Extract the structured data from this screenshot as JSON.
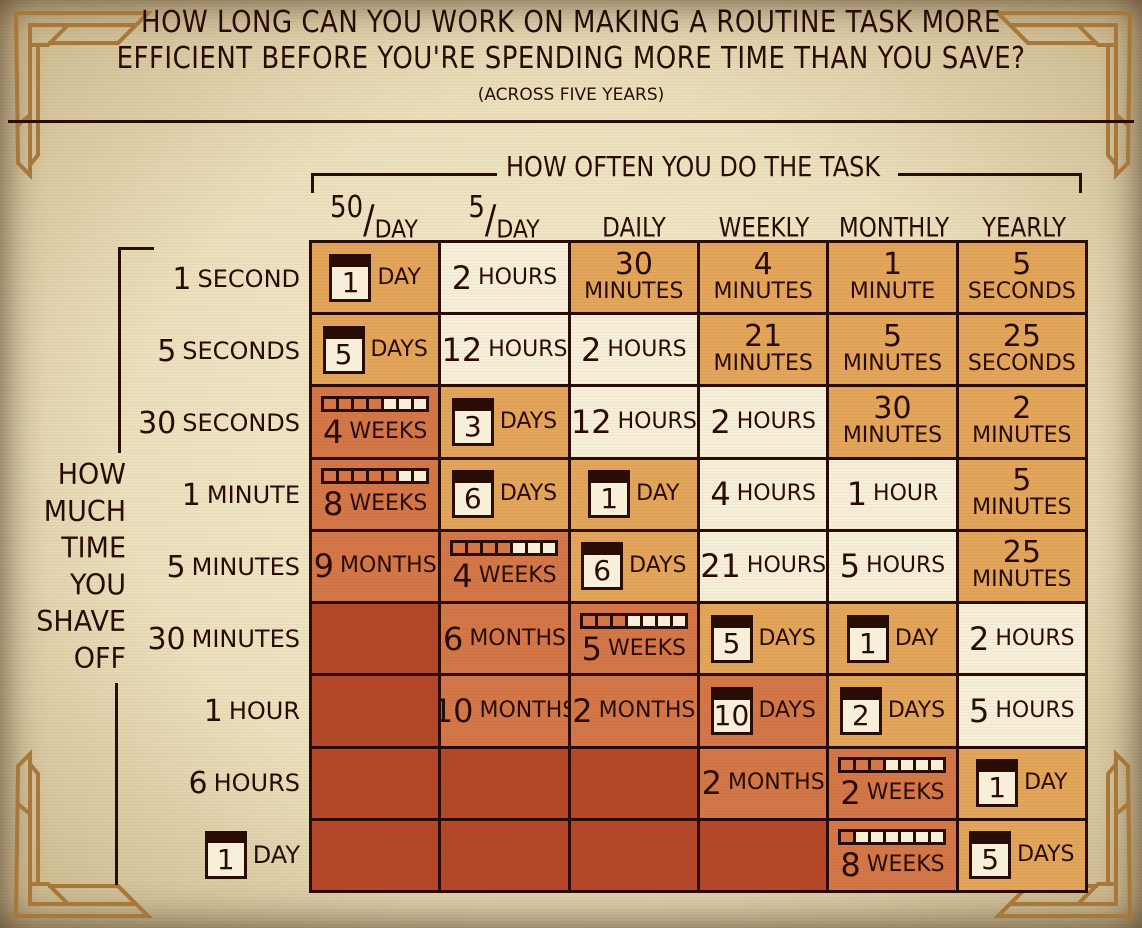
{
  "header": {
    "title_line_1": "HOW LONG CAN YOU WORK ON MAKING A ROUTINE TASK MORE",
    "title_line_2": "EFFICIENT BEFORE YOU'RE SPENDING MORE TIME THAN YOU SAVE?",
    "subtitle": "(ACROSS FIVE YEARS)"
  },
  "axes": {
    "column_group_label": "HOW OFTEN YOU DO THE TASK",
    "row_group_label": [
      "HOW",
      "MUCH",
      "TIME",
      "YOU",
      "SHAVE",
      "OFF"
    ],
    "columns": [
      {
        "num": "50",
        "slash": "/",
        "den": "DAY"
      },
      {
        "num": "5",
        "slash": "/",
        "den": "DAY"
      },
      {
        "label": "DAILY"
      },
      {
        "label": "WEEKLY"
      },
      {
        "label": "MONTHLY"
      },
      {
        "label": "YEARLY"
      }
    ],
    "rows": [
      {
        "num": "1",
        "unit": "SECOND"
      },
      {
        "num": "5",
        "unit": "SECONDS"
      },
      {
        "num": "30",
        "unit": "SECONDS"
      },
      {
        "num": "1",
        "unit": "MINUTE"
      },
      {
        "num": "5",
        "unit": "MINUTES"
      },
      {
        "num": "30",
        "unit": "MINUTES"
      },
      {
        "num": "1",
        "unit": "HOUR"
      },
      {
        "num": "6",
        "unit": "HOURS"
      },
      {
        "num": "1",
        "unit": "DAY",
        "calendar": true
      }
    ]
  },
  "colors": {
    "light": "#f7efd8",
    "gold": "#e3a55a",
    "orange": "#d47748",
    "dark": "#b6482a",
    "ink": "#2a0c06",
    "paper": "#f0e6c8",
    "frame_gold": "#a8773a"
  },
  "chart_data": {
    "type": "table",
    "title": "How long can you work on making a routine task more efficient before you're spending more time than you save? (across five years)",
    "xlabel": "How often you do the task",
    "ylabel": "How much time you shave off",
    "columns": [
      "50/day",
      "5/day",
      "Daily",
      "Weekly",
      "Monthly",
      "Yearly"
    ],
    "rows": [
      "1 second",
      "5 seconds",
      "30 seconds",
      "1 minute",
      "5 minutes",
      "30 minutes",
      "1 hour",
      "6 hours",
      "1 day"
    ],
    "values": [
      [
        "1 day",
        "2 hours",
        "30 minutes",
        "4 minutes",
        "1 minute",
        "5 seconds"
      ],
      [
        "5 days",
        "12 hours",
        "2 hours",
        "21 minutes",
        "5 minutes",
        "25 seconds"
      ],
      [
        "4 weeks",
        "3 days",
        "12 hours",
        "2 hours",
        "30 minutes",
        "2 minutes"
      ],
      [
        "8 weeks",
        "6 days",
        "1 day",
        "4 hours",
        "1 hour",
        "5 minutes"
      ],
      [
        "9 months",
        "4 weeks",
        "6 days",
        "21 hours",
        "5 hours",
        "25 minutes"
      ],
      [
        "",
        "6 months",
        "5 weeks",
        "5 days",
        "1 day",
        "2 hours"
      ],
      [
        "",
        "10 months",
        "2 months",
        "10 days",
        "2 days",
        "5 hours"
      ],
      [
        "",
        "",
        "",
        "2 months",
        "2 weeks",
        "1 day"
      ],
      [
        "",
        "",
        "",
        "",
        "8 weeks",
        "5 days"
      ]
    ]
  },
  "cells": [
    [
      {
        "type": "cal",
        "num": "1",
        "unit": "DAY",
        "color": "gold"
      },
      {
        "type": "inline",
        "num": "2",
        "unit": "HOURS",
        "color": "light"
      },
      {
        "type": "stack",
        "num": "30",
        "unit": "MINUTES",
        "color": "gold"
      },
      {
        "type": "stack",
        "num": "4",
        "unit": "MINUTES",
        "color": "gold"
      },
      {
        "type": "stack",
        "num": "1",
        "unit": "MINUTE",
        "color": "gold"
      },
      {
        "type": "stack",
        "num": "5",
        "unit": "SECONDS",
        "color": "gold"
      }
    ],
    [
      {
        "type": "cal",
        "num": "5",
        "unit": "DAYS",
        "color": "gold"
      },
      {
        "type": "inline",
        "num": "12",
        "unit": "HOURS",
        "color": "light"
      },
      {
        "type": "inline",
        "num": "2",
        "unit": "HOURS",
        "color": "light"
      },
      {
        "type": "stack",
        "num": "21",
        "unit": "MINUTES",
        "color": "gold"
      },
      {
        "type": "stack",
        "num": "5",
        "unit": "MINUTES",
        "color": "gold"
      },
      {
        "type": "stack",
        "num": "25",
        "unit": "SECONDS",
        "color": "gold"
      }
    ],
    [
      {
        "type": "weeks",
        "num": "4",
        "unit": "WEEKS",
        "filled": 4,
        "color": "orange"
      },
      {
        "type": "cal",
        "num": "3",
        "unit": "DAYS",
        "color": "gold"
      },
      {
        "type": "inline",
        "num": "12",
        "unit": "HOURS",
        "color": "light"
      },
      {
        "type": "inline",
        "num": "2",
        "unit": "HOURS",
        "color": "light"
      },
      {
        "type": "stack",
        "num": "30",
        "unit": "MINUTES",
        "color": "gold"
      },
      {
        "type": "stack",
        "num": "2",
        "unit": "MINUTES",
        "color": "gold"
      }
    ],
    [
      {
        "type": "weeks",
        "num": "8",
        "unit": "WEEKS",
        "filled": 5,
        "color": "orange"
      },
      {
        "type": "cal",
        "num": "6",
        "unit": "DAYS",
        "color": "gold"
      },
      {
        "type": "cal",
        "num": "1",
        "unit": "DAY",
        "color": "gold"
      },
      {
        "type": "inline",
        "num": "4",
        "unit": "HOURS",
        "color": "light"
      },
      {
        "type": "inline",
        "num": "1",
        "unit": "HOUR",
        "color": "light"
      },
      {
        "type": "stack",
        "num": "5",
        "unit": "MINUTES",
        "color": "gold"
      }
    ],
    [
      {
        "type": "inline",
        "num": "9",
        "unit": "MONTHS",
        "color": "orange"
      },
      {
        "type": "weeks",
        "num": "4",
        "unit": "WEEKS",
        "filled": 4,
        "color": "orange"
      },
      {
        "type": "cal",
        "num": "6",
        "unit": "DAYS",
        "color": "gold"
      },
      {
        "type": "inline",
        "num": "21",
        "unit": "HOURS",
        "color": "light"
      },
      {
        "type": "inline",
        "num": "5",
        "unit": "HOURS",
        "color": "light"
      },
      {
        "type": "stack",
        "num": "25",
        "unit": "MINUTES",
        "color": "gold"
      }
    ],
    [
      {
        "type": "empty",
        "color": "dark"
      },
      {
        "type": "inline",
        "num": "6",
        "unit": "MONTHS",
        "color": "orange"
      },
      {
        "type": "weeks",
        "num": "5",
        "unit": "WEEKS",
        "filled": 3,
        "color": "orange"
      },
      {
        "type": "cal",
        "num": "5",
        "unit": "DAYS",
        "color": "gold"
      },
      {
        "type": "cal",
        "num": "1",
        "unit": "DAY",
        "color": "gold"
      },
      {
        "type": "inline",
        "num": "2",
        "unit": "HOURS",
        "color": "light"
      }
    ],
    [
      {
        "type": "empty",
        "color": "dark"
      },
      {
        "type": "inline",
        "num": "10",
        "unit": "MONTHS",
        "color": "orange"
      },
      {
        "type": "inline",
        "num": "2",
        "unit": "MONTHS",
        "color": "orange"
      },
      {
        "type": "cal",
        "num": "10",
        "unit": "DAYS",
        "color": "orange"
      },
      {
        "type": "cal",
        "num": "2",
        "unit": "DAYS",
        "color": "gold"
      },
      {
        "type": "inline",
        "num": "5",
        "unit": "HOURS",
        "color": "light"
      }
    ],
    [
      {
        "type": "empty",
        "color": "dark"
      },
      {
        "type": "empty",
        "color": "dark"
      },
      {
        "type": "empty",
        "color": "dark"
      },
      {
        "type": "inline",
        "num": "2",
        "unit": "MONTHS",
        "color": "orange"
      },
      {
        "type": "weeks",
        "num": "2",
        "unit": "WEEKS",
        "filled": 3,
        "color": "orange"
      },
      {
        "type": "cal",
        "num": "1",
        "unit": "DAY",
        "color": "gold"
      }
    ],
    [
      {
        "type": "empty",
        "color": "dark"
      },
      {
        "type": "empty",
        "color": "dark"
      },
      {
        "type": "empty",
        "color": "dark"
      },
      {
        "type": "empty",
        "color": "dark"
      },
      {
        "type": "weeks",
        "num": "8",
        "unit": "WEEKS",
        "filled": 1,
        "color": "orange"
      },
      {
        "type": "cal",
        "num": "5",
        "unit": "DAYS",
        "color": "gold"
      }
    ]
  ]
}
